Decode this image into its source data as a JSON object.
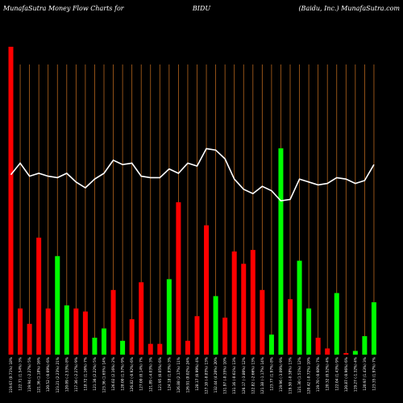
{
  "header": {
    "left": "MunafaSutra  Money Flow  Charts for",
    "middle": "BIDU",
    "right": "(Baidu, Inc.) MunafaSutra.com"
  },
  "colors": {
    "up": "#00ff00",
    "down": "#ff0000",
    "line": "#ffffff",
    "grid": "#b5651d",
    "background": "#000000"
  },
  "chart_data": {
    "type": "bar",
    "title": "",
    "ylim": [
      0,
      100
    ],
    "line_ylim": [
      0,
      100
    ],
    "grid": "vertical",
    "categories": [
      "119.67 (0.71%) 18%",
      "122.71 (1.54%) 3%",
      "119.94 (-2.27%) 5%",
      "121.36 (1.18%) 16%",
      "120.52 (-0.69%) 6%",
      "123.21 (2.23%) 21%",
      "120.09 (-2.53%) 8%",
      "117.36 (-2.27%) 9%",
      "118.72 (1.16%) 7%",
      "121.36 (2.22%) 5%",
      "123.36 (1.65%) 14%",
      "126.02 (2.16%) 2%",
      "128.00 (1.57%) 9%",
      "126.82 (-0.92%) 6%",
      "127.00 (0.14%) 7%",
      "121.89 (-4.03%) 3%",
      "121.95 (0.05%) 6%",
      "124.18 (1.83%) 3%",
      "126.88 (2.17%) 11%",
      "126.91 (0.02%) 24%",
      "128.17 (0.99%) 4%",
      "127.10 (-0.83%) 13%",
      "132.44 (4.20%) 20%",
      "131.97 (-0.35%) 10%",
      "131.16 (-0.61%) 13%",
      "126.17 (-3.80%) 12%",
      "122.82 (-2.66%) 13%",
      "121.38 (-1.17%) 14%",
      "123.77 (1.97%) 8%",
      "119.96 (-3.09%) 9%",
      "119.50 (-0.38%) 13%",
      "121.30 (1.51%) 12%",
      "120.42 (-0.72%) 10%",
      "119.70 (-0.60%) 7%",
      "120.32 (0.52%) 4%",
      "122.04 (1.43%) 9%",
      "120.87 (-0.96%) 6%",
      "119.27 (-1.32%) 4%",
      "120.97 (1.43%) 3%",
      "123.35 (1.97%) 7%"
    ],
    "bar_colors": [
      "red",
      "red",
      "red",
      "red",
      "red",
      "green",
      "green",
      "red",
      "red",
      "green",
      "green",
      "red",
      "green",
      "red",
      "red",
      "red",
      "red",
      "green",
      "red",
      "red",
      "red",
      "red",
      "green",
      "red",
      "red",
      "red",
      "red",
      "red",
      "green",
      "green",
      "red",
      "green",
      "green",
      "red",
      "red",
      "green",
      "red",
      "green",
      "green",
      "green"
    ],
    "values": [
      100,
      15,
      10,
      38,
      15,
      32,
      16,
      15,
      14,
      5.5,
      8.5,
      21,
      4.5,
      11.5,
      23.5,
      3.5,
      3.5,
      24.5,
      49.5,
      4.5,
      12.5,
      42,
      19,
      12,
      33.5,
      29.5,
      34,
      21,
      6.5,
      67,
      18,
      30.5,
      15,
      5.5,
      2,
      20,
      0.5,
      1.2,
      6,
      17
    ],
    "line": [
      62,
      66,
      61.5,
      62.5,
      61.5,
      61,
      62.5,
      59.5,
      57.5,
      60.5,
      62.5,
      67,
      65.5,
      66,
      61.5,
      61,
      61,
      64,
      62.5,
      66,
      65,
      71,
      70.5,
      67.5,
      60.5,
      57,
      55.5,
      58,
      56.5,
      53,
      53.5,
      60.5,
      59.5,
      58.5,
      59,
      61,
      60.5,
      59,
      60,
      65.5
    ]
  }
}
